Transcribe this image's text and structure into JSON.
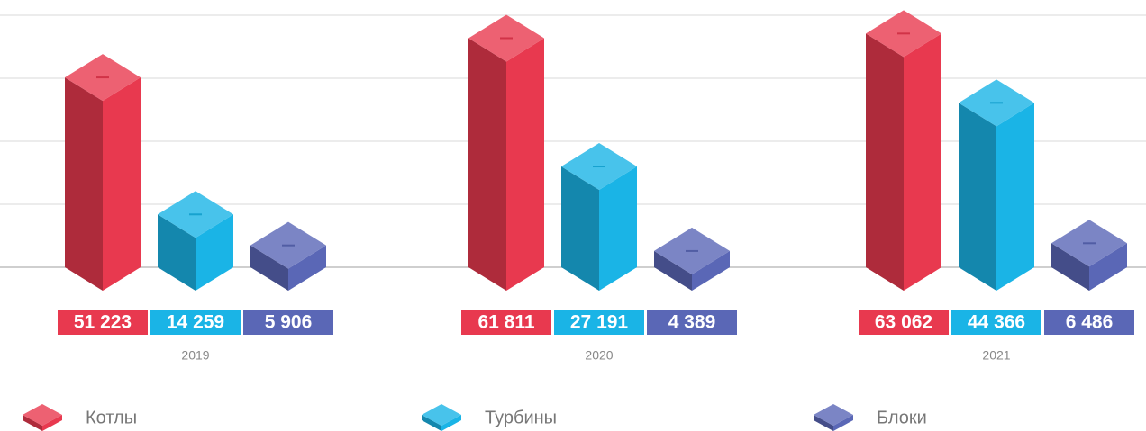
{
  "chart_data": {
    "type": "bar3d",
    "categories": [
      "2019",
      "2020",
      "2021"
    ],
    "series": [
      {
        "name": "Котлы",
        "color": "#e8394f",
        "values": [
          51223,
          61811,
          63062
        ],
        "value_labels": [
          "51 223",
          "61 811",
          "63 062"
        ]
      },
      {
        "name": "Турбины",
        "color": "#1ab4e6",
        "values": [
          14259,
          27191,
          44366
        ],
        "value_labels": [
          "14 259",
          "27 191",
          "44 366"
        ]
      },
      {
        "name": "Блоки",
        "color": "#5a67b6",
        "values": [
          5906,
          4389,
          6486
        ],
        "value_labels": [
          "5 906",
          "4 389",
          "6 486"
        ]
      }
    ],
    "ylim": [
      0,
      68000
    ],
    "yticks": [
      0,
      17000,
      34000,
      51000,
      68000
    ],
    "grid": true
  }
}
